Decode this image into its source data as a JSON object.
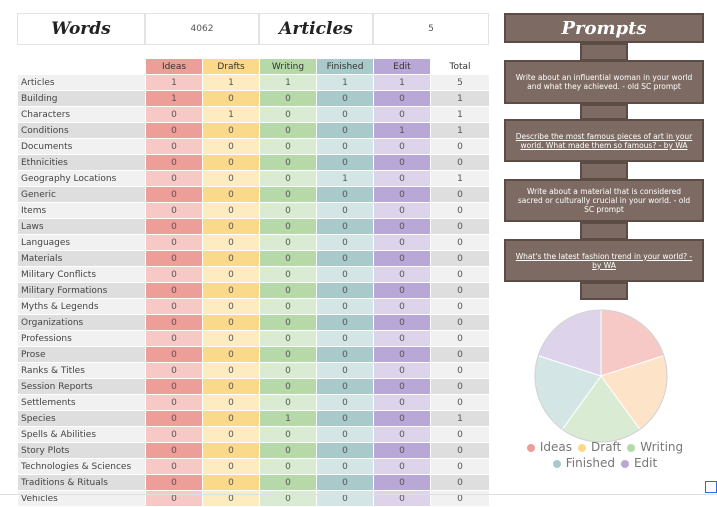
{
  "stats": {
    "words_label": "Words",
    "words_value": "4062",
    "articles_label": "Articles",
    "articles_value": "5"
  },
  "table": {
    "columns": [
      "Ideas",
      "Drafts",
      "Writing",
      "Finished",
      "Edit",
      "Total"
    ],
    "rows": [
      {
        "name": "Articles",
        "values": [
          "1",
          "1",
          "1",
          "1",
          "1",
          "5"
        ]
      },
      {
        "name": "Building",
        "values": [
          "1",
          "0",
          "0",
          "0",
          "0",
          "1"
        ]
      },
      {
        "name": "Characters",
        "values": [
          "0",
          "1",
          "0",
          "0",
          "0",
          "1"
        ]
      },
      {
        "name": "Conditions",
        "values": [
          "0",
          "0",
          "0",
          "0",
          "1",
          "1"
        ]
      },
      {
        "name": "Documents",
        "values": [
          "0",
          "0",
          "0",
          "0",
          "0",
          "0"
        ]
      },
      {
        "name": "Ethnicities",
        "values": [
          "0",
          "0",
          "0",
          "0",
          "0",
          "0"
        ]
      },
      {
        "name": "Geography Locations",
        "values": [
          "0",
          "0",
          "0",
          "1",
          "0",
          "1"
        ]
      },
      {
        "name": "Generic",
        "values": [
          "0",
          "0",
          "0",
          "0",
          "0",
          "0"
        ]
      },
      {
        "name": "Items",
        "values": [
          "0",
          "0",
          "0",
          "0",
          "0",
          "0"
        ]
      },
      {
        "name": "Laws",
        "values": [
          "0",
          "0",
          "0",
          "0",
          "0",
          "0"
        ]
      },
      {
        "name": "Languages",
        "values": [
          "0",
          "0",
          "0",
          "0",
          "0",
          "0"
        ]
      },
      {
        "name": "Materials",
        "values": [
          "0",
          "0",
          "0",
          "0",
          "0",
          "0"
        ]
      },
      {
        "name": "Military Conflicts",
        "values": [
          "0",
          "0",
          "0",
          "0",
          "0",
          "0"
        ]
      },
      {
        "name": "Military Formations",
        "values": [
          "0",
          "0",
          "0",
          "0",
          "0",
          "0"
        ]
      },
      {
        "name": "Myths & Legends",
        "values": [
          "0",
          "0",
          "0",
          "0",
          "0",
          "0"
        ]
      },
      {
        "name": "Organizations",
        "values": [
          "0",
          "0",
          "0",
          "0",
          "0",
          "0"
        ]
      },
      {
        "name": "Professions",
        "values": [
          "0",
          "0",
          "0",
          "0",
          "0",
          "0"
        ]
      },
      {
        "name": "Prose",
        "values": [
          "0",
          "0",
          "0",
          "0",
          "0",
          "0"
        ]
      },
      {
        "name": "Ranks & Titles",
        "values": [
          "0",
          "0",
          "0",
          "0",
          "0",
          "0"
        ]
      },
      {
        "name": "Session Reports",
        "values": [
          "0",
          "0",
          "0",
          "0",
          "0",
          "0"
        ]
      },
      {
        "name": "Settlements",
        "values": [
          "0",
          "0",
          "0",
          "0",
          "0",
          "0"
        ]
      },
      {
        "name": "Species",
        "values": [
          "0",
          "0",
          "1",
          "0",
          "0",
          "1"
        ]
      },
      {
        "name": "Spells & Abilities",
        "values": [
          "0",
          "0",
          "0",
          "0",
          "0",
          "0"
        ]
      },
      {
        "name": "Story Plots",
        "values": [
          "0",
          "0",
          "0",
          "0",
          "0",
          "0"
        ]
      },
      {
        "name": "Technologies & Sciences",
        "values": [
          "0",
          "0",
          "0",
          "0",
          "0",
          "0"
        ]
      },
      {
        "name": "Traditions & Rituals",
        "values": [
          "0",
          "0",
          "0",
          "0",
          "0",
          "0"
        ]
      },
      {
        "name": "Vehicles",
        "values": [
          "0",
          "0",
          "0",
          "0",
          "0",
          "0"
        ]
      }
    ]
  },
  "prompts": {
    "title": "Prompts",
    "items": [
      {
        "text": "Write about an influential woman in your world and what they achieved. - old SC prompt",
        "link": false
      },
      {
        "text": "Describe the most famous pieces of art in your world. What made them so famous? - by WA",
        "link": true
      },
      {
        "text": "Write about a material that is considered sacred or culturally crucial in your world. - old SC prompt",
        "link": false
      },
      {
        "text": "What's the latest fashion trend in your world? - by WA",
        "link": true
      }
    ]
  },
  "chart_data": {
    "type": "pie",
    "categories": [
      "Ideas",
      "Draft",
      "Writing",
      "Finished",
      "Edit"
    ],
    "values": [
      1,
      1,
      1,
      1,
      1
    ],
    "colors": [
      "#f7c9c6",
      "#fde3c8",
      "#d9ebd2",
      "#d4e5e6",
      "#ddd3eb"
    ],
    "legend_position": "bottom"
  }
}
